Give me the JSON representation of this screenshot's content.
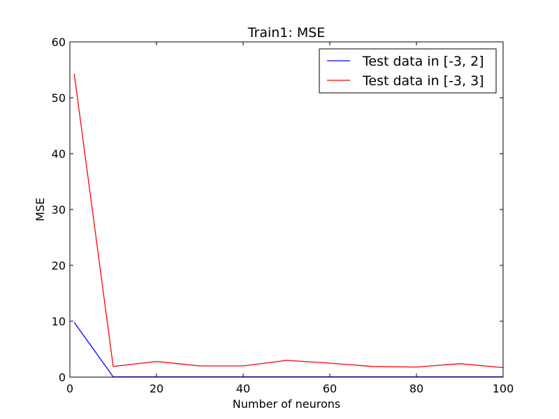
{
  "chart_data": {
    "type": "line",
    "title": "Train1: MSE",
    "xlabel": "Number of neurons",
    "ylabel": "MSE",
    "xlim": [
      0,
      100
    ],
    "ylim": [
      0,
      60
    ],
    "xticks": [
      0,
      20,
      40,
      60,
      80,
      100
    ],
    "yticks": [
      0,
      10,
      20,
      30,
      40,
      50,
      60
    ],
    "grid": false,
    "legend_position": "top-right",
    "x": [
      1,
      10,
      20,
      30,
      40,
      50,
      60,
      70,
      80,
      90,
      100
    ],
    "series": [
      {
        "name": "Test data in [-3, 2]",
        "color": "#0000ff",
        "values": [
          9.8,
          0.05,
          0.05,
          0.05,
          0.05,
          0.05,
          0.05,
          0.05,
          0.05,
          0.05,
          0.05
        ]
      },
      {
        "name": "Test data in [-3, 3]",
        "color": "#ff0000",
        "values": [
          54.3,
          1.9,
          2.8,
          2.0,
          2.0,
          3.0,
          2.5,
          1.9,
          1.8,
          2.4,
          1.7
        ]
      }
    ]
  }
}
